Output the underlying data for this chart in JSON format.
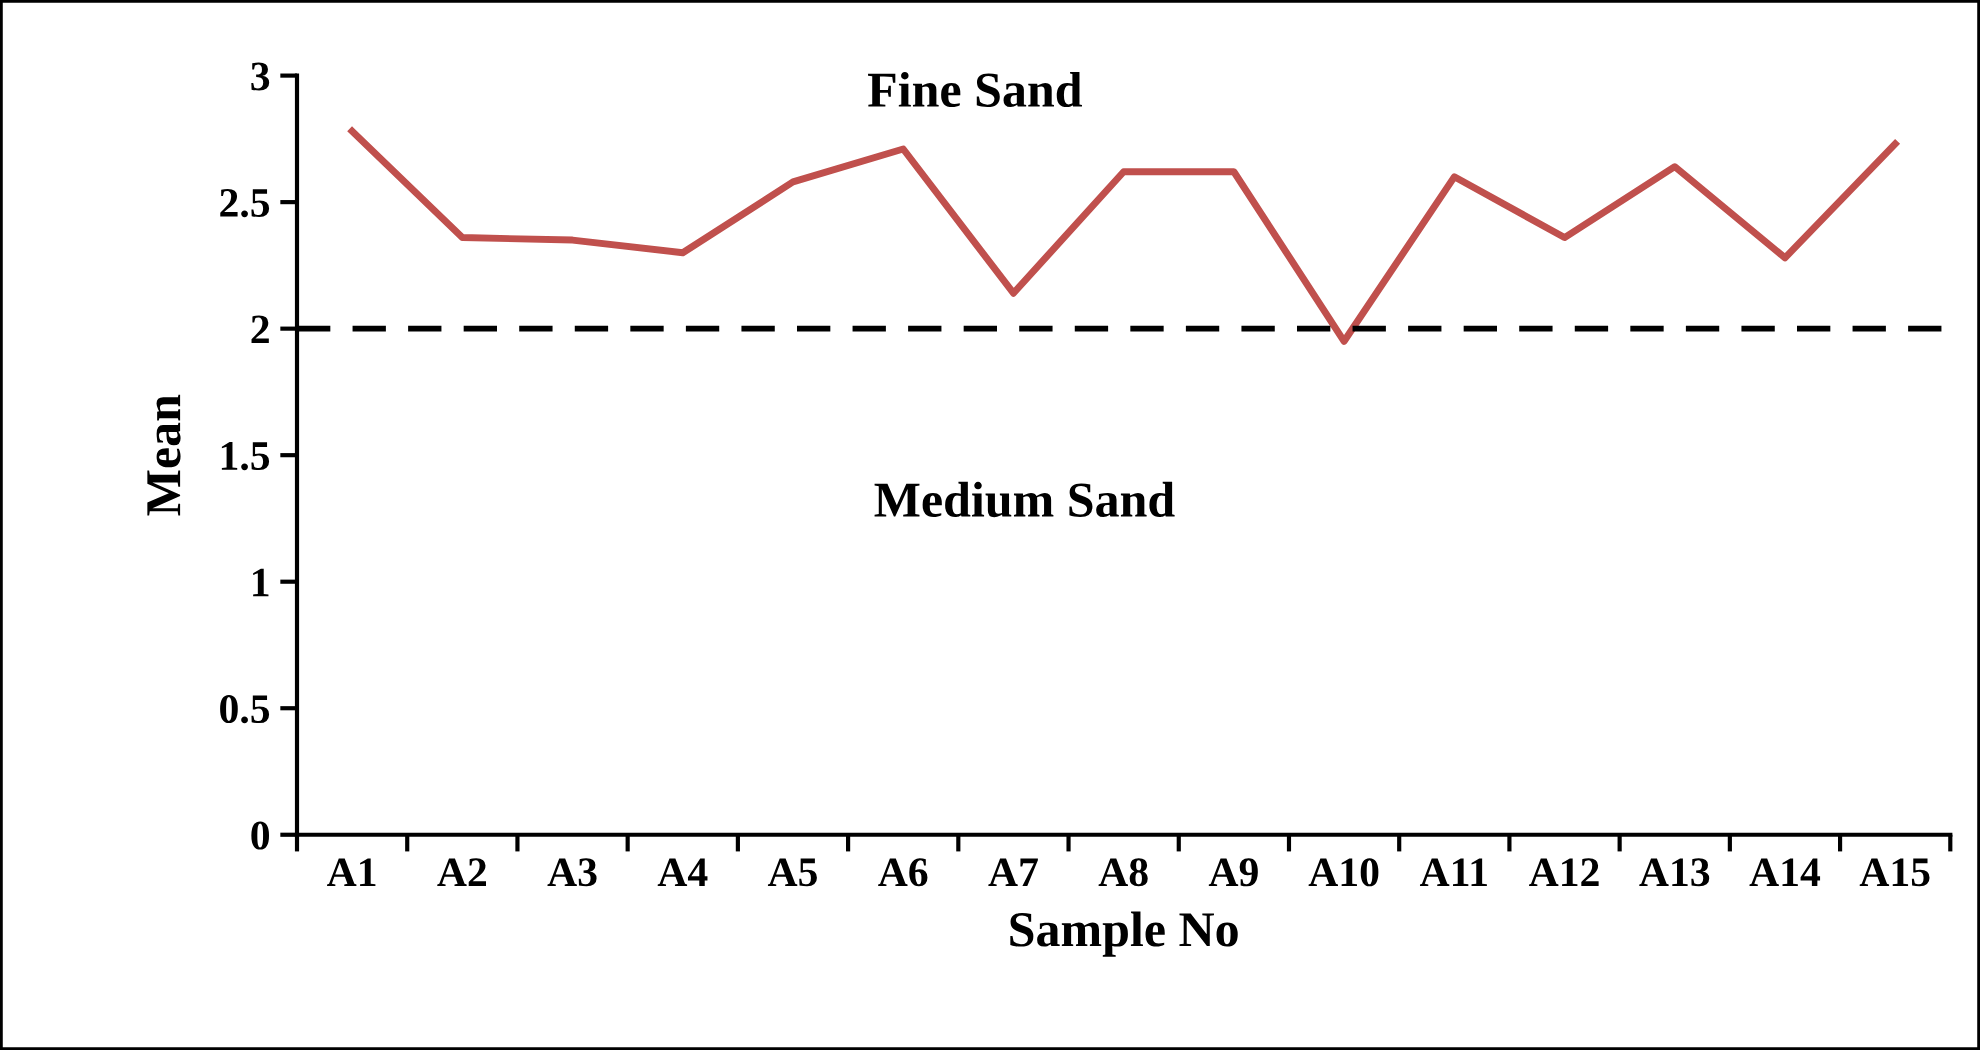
{
  "chart_data": {
    "type": "line",
    "xlabel": "Sample No",
    "ylabel": "Mean",
    "categories": [
      "A1",
      "A2",
      "A3",
      "A4",
      "A5",
      "A6",
      "A7",
      "A8",
      "A9",
      "A10",
      "A11",
      "A12",
      "A13",
      "A14",
      "A15"
    ],
    "series": [
      {
        "color": "#c0504d",
        "values": [
          2.78,
          2.36,
          2.35,
          2.3,
          2.58,
          2.71,
          2.14,
          2.62,
          2.62,
          1.95,
          2.6,
          2.36,
          2.64,
          2.28,
          2.73
        ]
      }
    ],
    "ylim": [
      0,
      3
    ],
    "yticks": [
      0,
      0.5,
      1,
      1.5,
      2,
      2.5,
      3
    ],
    "ref_lines": [
      {
        "axis": "y",
        "value": 2,
        "color": "#000000",
        "line_style": "dashed"
      }
    ],
    "annotations": [
      "Fine Sand",
      "Medium Sand"
    ],
    "grid": false,
    "legend": false,
    "marker": "none",
    "line_style": "solid"
  }
}
